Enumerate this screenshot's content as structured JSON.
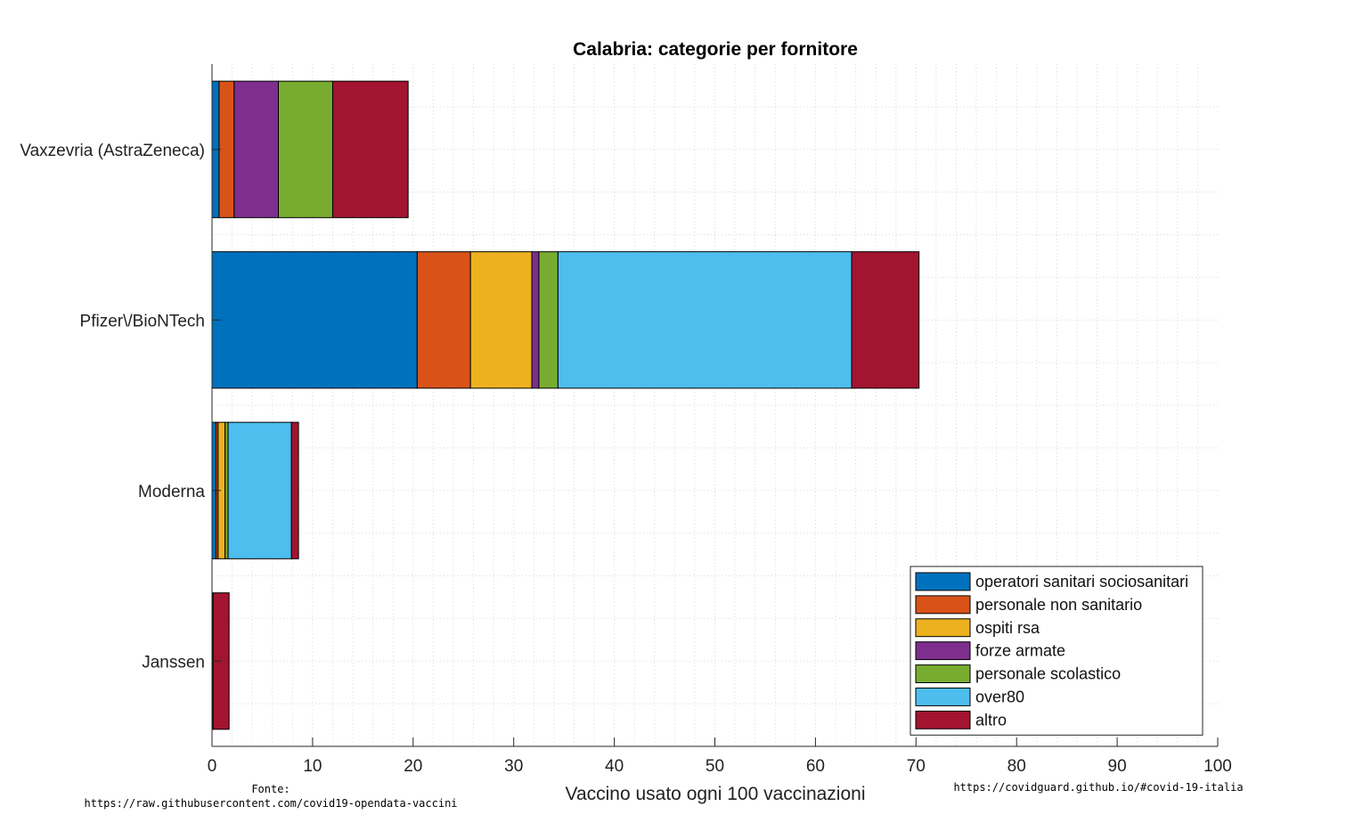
{
  "chart_data": {
    "type": "bar",
    "orientation": "horizontal",
    "stacked": true,
    "title": "Calabria: categorie per fornitore",
    "xlabel": "Vaccino usato ogni 100 vaccinazioni",
    "ylabel": "",
    "xlim": [
      0,
      100
    ],
    "xticks": [
      0,
      10,
      20,
      30,
      40,
      50,
      60,
      70,
      80,
      90,
      100
    ],
    "grid": true,
    "legend_position": "bottom-right",
    "categories": [
      "Vaxzevria (AstraZeneca)",
      "Pfizer\\/BioNTech",
      "Moderna",
      "Janssen"
    ],
    "series": [
      {
        "name": "operatori sanitari sociosanitari",
        "color": "#0072BD",
        "values": [
          0.7,
          20.4,
          0.4,
          0.1
        ]
      },
      {
        "name": "personale non sanitario",
        "color": "#D95319",
        "values": [
          1.5,
          5.3,
          0.2,
          0.0
        ]
      },
      {
        "name": "ospiti rsa",
        "color": "#EDB120",
        "values": [
          0.0,
          6.1,
          0.7,
          0.0
        ]
      },
      {
        "name": "forze armate",
        "color": "#7E2F8E",
        "values": [
          4.4,
          0.7,
          0.0,
          0.0
        ]
      },
      {
        "name": "personale scolastico",
        "color": "#77AC30",
        "values": [
          5.4,
          1.9,
          0.3,
          0.0
        ]
      },
      {
        "name": "over80",
        "color": "#4DBEEE",
        "values": [
          0.0,
          29.2,
          6.3,
          0.0
        ]
      },
      {
        "name": "altro",
        "color": "#A2142F",
        "values": [
          7.5,
          6.7,
          0.7,
          1.6
        ]
      }
    ]
  },
  "footer": {
    "source_label": "Fonte:",
    "source_url": "https://raw.githubusercontent.com/covid19-opendata-vaccini",
    "site_url": "https://covidguard.github.io/#covid-19-italia"
  }
}
